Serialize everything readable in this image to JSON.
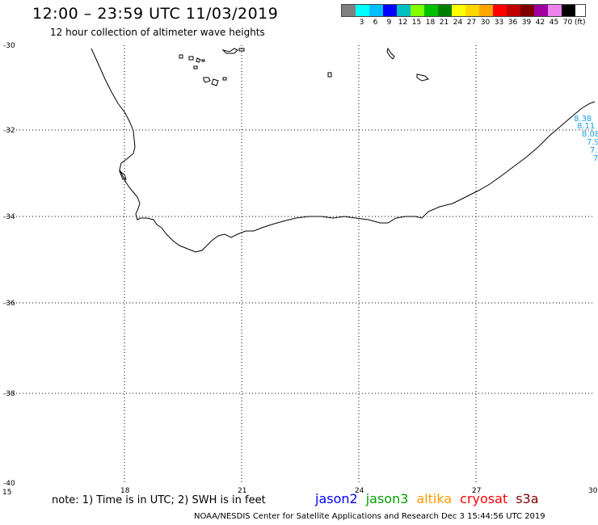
{
  "header": {
    "title": "12:00 – 23:59 UTC 11/03/2019",
    "subtitle": "12 hour collection of altimeter wave heights"
  },
  "color_scale": {
    "unit": "(ft)",
    "bins": [
      {
        "label": "",
        "color": "#808080"
      },
      {
        "label": "3",
        "color": "#00ffff"
      },
      {
        "label": "6",
        "color": "#00bfff"
      },
      {
        "label": "9",
        "color": "#0000ff"
      },
      {
        "label": "12",
        "color": "#00bfbf"
      },
      {
        "label": "15",
        "color": "#7fff00"
      },
      {
        "label": "18",
        "color": "#00c000"
      },
      {
        "label": "21",
        "color": "#008000"
      },
      {
        "label": "24",
        "color": "#ffff00"
      },
      {
        "label": "27",
        "color": "#ffd700"
      },
      {
        "label": "30",
        "color": "#ffa500"
      },
      {
        "label": "33",
        "color": "#ff0000"
      },
      {
        "label": "36",
        "color": "#c00000"
      },
      {
        "label": "39",
        "color": "#800000"
      },
      {
        "label": "42",
        "color": "#a000a0"
      },
      {
        "label": "45",
        "color": "#ee82ee"
      },
      {
        "label": "70",
        "color": "#000000"
      }
    ]
  },
  "map": {
    "lon_range": [
      15,
      30
    ],
    "lat_range": [
      -40,
      -30
    ],
    "lon_ticks": [
      "15",
      "18",
      "21",
      "24",
      "27",
      "30"
    ],
    "lat_ticks": [
      "-30",
      "-32",
      "-34",
      "-36",
      "-38",
      "-40"
    ],
    "grid": "dotted",
    "wave_readings": [
      "8.38",
      "8.11",
      "8.08",
      "7.9",
      "7.",
      "7"
    ]
  },
  "footer": {
    "note": "note: 1) Time is in UTC; 2) SWH is in feet",
    "satellites": [
      {
        "name": "jason2",
        "color": "#0000ff"
      },
      {
        "name": "jason3",
        "color": "#00a000"
      },
      {
        "name": "altika",
        "color": "#ff9900"
      },
      {
        "name": "cryosat",
        "color": "#ff0000"
      },
      {
        "name": "s3a",
        "color": "#800000"
      }
    ],
    "credit": "NOAA/NESDIS Center for Satellite Applications and Research     Dec  3 15:44:56 UTC 2019"
  }
}
